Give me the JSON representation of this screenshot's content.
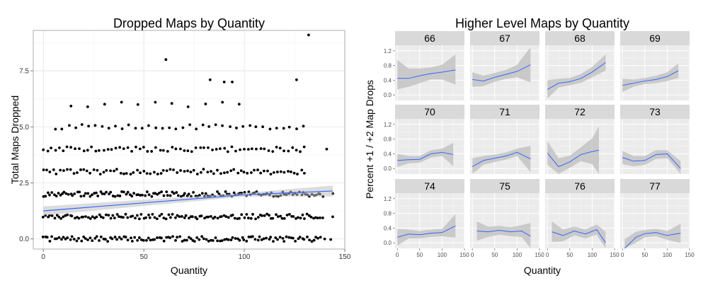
{
  "chart_data": [
    {
      "type": "scatter",
      "title": "Dropped Maps by Quantity",
      "xlabel": "Quantity",
      "ylabel": "Total Maps Dropped",
      "xlim": [
        -5,
        150
      ],
      "ylim": [
        -0.45,
        9.3
      ],
      "x_ticks": [
        0,
        50,
        100,
        150
      ],
      "y_ticks": [
        0.0,
        2.5,
        5.0,
        7.5
      ],
      "y_tick_labels": [
        "0.0",
        "2.5",
        "5.0",
        "7.5"
      ],
      "grid": true,
      "theme_background": "#ffffff",
      "point_color": "#000000",
      "trend_color": "#3366ff",
      "band_color": "#bfbfbf",
      "trend_line": {
        "x": [
          0,
          100,
          144
        ],
        "y": [
          1.25,
          1.97,
          2.14
        ]
      },
      "confidence_band": {
        "x": [
          0,
          100,
          144
        ],
        "upper": [
          1.45,
          2.05,
          2.38
        ],
        "lower": [
          1.05,
          1.89,
          1.9
        ]
      },
      "point_bands": [
        {
          "y": 0,
          "x_min": 0,
          "x_max": 138,
          "density": 0.9,
          "extra_x": [
            140,
            143
          ]
        },
        {
          "y": 1,
          "x_min": 0,
          "x_max": 140,
          "density": 0.9,
          "extra_x": [
            144
          ]
        },
        {
          "y": 2,
          "x_min": 0,
          "x_max": 140,
          "density": 0.95,
          "extra_x": [
            144
          ]
        },
        {
          "y": 3,
          "x_min": 0,
          "x_max": 131,
          "density": 0.6,
          "extra_x": []
        },
        {
          "y": 4,
          "x_min": 0,
          "x_max": 131,
          "density": 0.5,
          "extra_x": [
            141
          ]
        },
        {
          "y": 5,
          "x_min": 6,
          "x_max": 131,
          "density": 0.3,
          "extra_x": []
        },
        {
          "y": 6,
          "x_min": 14,
          "x_max": 101,
          "density": 0.12,
          "extra_x": []
        }
      ],
      "outliers": [
        {
          "x": 61,
          "y": 8.0
        },
        {
          "x": 83,
          "y": 7.1
        },
        {
          "x": 90,
          "y": 7.0
        },
        {
          "x": 94,
          "y": 7.0
        },
        {
          "x": 126,
          "y": 7.1
        },
        {
          "x": 132,
          "y": 9.1
        }
      ]
    },
    {
      "type": "line",
      "title": "Higher Level Maps by Quantity",
      "xlabel": "Quantity",
      "ylabel": "Percent +1 / +2 Map Drops",
      "xlim": [
        -5,
        150
      ],
      "ylim": [
        -0.15,
        1.35
      ],
      "x_ticks": [
        0,
        50,
        100,
        150
      ],
      "y_ticks": [
        0.0,
        0.4,
        0.8,
        1.2
      ],
      "y_tick_labels": [
        "0.0",
        "0.4",
        "0.8",
        "1.2"
      ],
      "panel_background": "#ebebeb",
      "strip_background": "#d9d9d9",
      "line_color": "#3366ff",
      "band_color": "#bdbdbd",
      "facets": [
        {
          "label": "66",
          "x": [
            0,
            25,
            50,
            75,
            100,
            130
          ],
          "y": [
            0.45,
            0.45,
            0.52,
            0.58,
            0.62,
            0.68
          ],
          "upper": [
            0.95,
            0.72,
            0.72,
            0.75,
            0.82,
            1.1
          ],
          "lower": [
            0.15,
            0.22,
            0.32,
            0.42,
            0.42,
            0.28
          ]
        },
        {
          "label": "67",
          "x": [
            0,
            25,
            50,
            75,
            100,
            130
          ],
          "y": [
            0.42,
            0.38,
            0.48,
            0.56,
            0.64,
            0.82
          ],
          "upper": [
            0.62,
            0.52,
            0.6,
            0.68,
            0.82,
            1.3
          ],
          "lower": [
            0.22,
            0.24,
            0.36,
            0.44,
            0.48,
            0.34
          ]
        },
        {
          "label": "68",
          "x": [
            0,
            25,
            50,
            75,
            100,
            130
          ],
          "y": [
            0.15,
            0.32,
            0.36,
            0.45,
            0.62,
            0.88
          ],
          "upper": [
            0.4,
            0.44,
            0.46,
            0.57,
            0.76,
            1.1
          ],
          "lower": [
            -0.1,
            0.2,
            0.26,
            0.33,
            0.48,
            0.66
          ]
        },
        {
          "label": "69",
          "x": [
            0,
            25,
            50,
            75,
            100,
            125
          ],
          "y": [
            0.26,
            0.32,
            0.38,
            0.42,
            0.5,
            0.66
          ],
          "upper": [
            0.44,
            0.42,
            0.46,
            0.52,
            0.62,
            0.86
          ],
          "lower": [
            0.08,
            0.22,
            0.3,
            0.32,
            0.38,
            0.46
          ]
        },
        {
          "label": "70",
          "x": [
            0,
            25,
            50,
            75,
            100,
            125
          ],
          "y": [
            0.22,
            0.24,
            0.25,
            0.4,
            0.44,
            0.38
          ],
          "upper": [
            0.4,
            0.34,
            0.34,
            0.5,
            0.54,
            0.7
          ],
          "lower": [
            0.04,
            0.14,
            0.16,
            0.3,
            0.34,
            0.06
          ]
        },
        {
          "label": "71",
          "x": [
            0,
            25,
            50,
            75,
            100,
            130
          ],
          "y": [
            0.05,
            0.22,
            0.28,
            0.34,
            0.44,
            0.26
          ],
          "upper": [
            0.28,
            0.34,
            0.38,
            0.44,
            0.54,
            0.62
          ],
          "lower": [
            -0.15,
            0.1,
            0.18,
            0.24,
            0.34,
            -0.1
          ]
        },
        {
          "label": "72",
          "x": [
            0,
            25,
            50,
            75,
            100,
            115
          ],
          "y": [
            0.42,
            0.05,
            0.18,
            0.38,
            0.46,
            0.5
          ],
          "upper": [
            0.75,
            0.28,
            0.35,
            0.58,
            0.82,
            1.15
          ],
          "lower": [
            0.1,
            -0.15,
            0.02,
            0.2,
            0.12,
            -0.15
          ]
        },
        {
          "label": "73",
          "x": [
            0,
            25,
            50,
            75,
            100,
            130
          ],
          "y": [
            0.3,
            0.2,
            0.22,
            0.38,
            0.4,
            0.0
          ],
          "upper": [
            0.48,
            0.34,
            0.34,
            0.5,
            0.5,
            0.2
          ],
          "lower": [
            0.12,
            0.06,
            0.1,
            0.26,
            0.28,
            -0.15
          ]
        },
        {
          "label": "74",
          "x": [
            0,
            25,
            50,
            75,
            100,
            130
          ],
          "y": [
            0.15,
            0.24,
            0.22,
            0.26,
            0.28,
            0.46
          ],
          "upper": [
            0.38,
            0.36,
            0.32,
            0.36,
            0.38,
            0.78
          ],
          "lower": [
            -0.08,
            0.12,
            0.12,
            0.16,
            0.18,
            0.14
          ]
        },
        {
          "label": "75",
          "x": [
            10,
            35,
            60,
            85,
            110,
            130
          ],
          "y": [
            0.32,
            0.3,
            0.34,
            0.3,
            0.32,
            0.18
          ],
          "upper": [
            0.58,
            0.44,
            0.46,
            0.42,
            0.48,
            0.54
          ],
          "lower": [
            0.06,
            0.16,
            0.22,
            0.18,
            0.16,
            -0.15
          ]
        },
        {
          "label": "76",
          "x": [
            10,
            35,
            60,
            85,
            110,
            130
          ],
          "y": [
            0.3,
            0.2,
            0.32,
            0.24,
            0.36,
            0.0
          ],
          "upper": [
            0.58,
            0.36,
            0.44,
            0.36,
            0.5,
            0.3
          ],
          "lower": [
            0.02,
            0.04,
            0.2,
            0.12,
            0.22,
            -0.15
          ]
        },
        {
          "label": "77",
          "x": [
            5,
            30,
            50,
            75,
            100,
            130
          ],
          "y": [
            -0.15,
            0.15,
            0.25,
            0.28,
            0.2,
            0.26
          ],
          "upper": [
            0.1,
            0.3,
            0.35,
            0.38,
            0.32,
            0.52
          ],
          "lower": [
            -0.15,
            0.0,
            0.15,
            0.18,
            0.08,
            0.0
          ]
        }
      ]
    }
  ]
}
